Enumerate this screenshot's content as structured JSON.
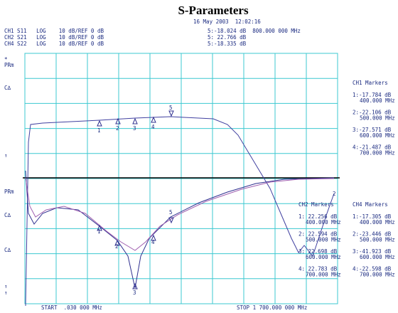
{
  "header": {
    "title": "S-Parameters",
    "timestamp": "16 May 2003  12:02:16",
    "channels": [
      "CH1 S11   LOG    10 dB/REF 0 dB",
      "CH2 S21   LOG    10 dB/REF 0 dB",
      "CH4 S22   LOG    10 dB/REF 0 dB"
    ],
    "marker5": [
      "5:-18.024 dB  800.000 000 MHz",
      "5: 22.766 dB",
      "5:-18.335 dB"
    ]
  },
  "left_labels": [
    "*",
    "PRm",
    "C∆",
    "↑",
    "PRm",
    "C∆",
    "C∆",
    "↑",
    "↑"
  ],
  "marker_numbers": [
    "1",
    "2",
    "3",
    "4",
    "5",
    "1",
    "2",
    "3",
    "4",
    "5",
    "2"
  ],
  "ch1_markers": {
    "title": "CH1 Markers",
    "rows": [
      [
        "1:-17.784 dB",
        "400.000 MHz"
      ],
      [
        "2:-22.106 dB",
        "500.000 MHz"
      ],
      [
        "3:-27.571 dB",
        "600.000 MHz"
      ],
      [
        "4:-21.487 dB",
        "700.000 MHz"
      ]
    ]
  },
  "ch2_markers": {
    "title": "CH2 Markers",
    "rows": [
      [
        "1: 22.256 dB",
        "400.000 MHz"
      ],
      [
        "2: 22.594 dB",
        "500.000 MHz"
      ],
      [
        "3: 22.698 dB",
        "600.000 MHz"
      ],
      [
        "4: 22.783 dB",
        "700.000 MHz"
      ]
    ]
  },
  "ch4_markers": {
    "title": "CH4 Markers",
    "rows": [
      [
        "1:-17.305 dB",
        "400.000 MHz"
      ],
      [
        "2:-23.446 dB",
        "500.000 MHz"
      ],
      [
        "3:-41.923 dB",
        "600.000 MHz"
      ],
      [
        "4:-22.598 dB",
        "700.000 MHz"
      ]
    ]
  },
  "footer": {
    "start": "START  .030 000 MHz",
    "stop": "STOP 1 700.000 000 MHz"
  }
}
